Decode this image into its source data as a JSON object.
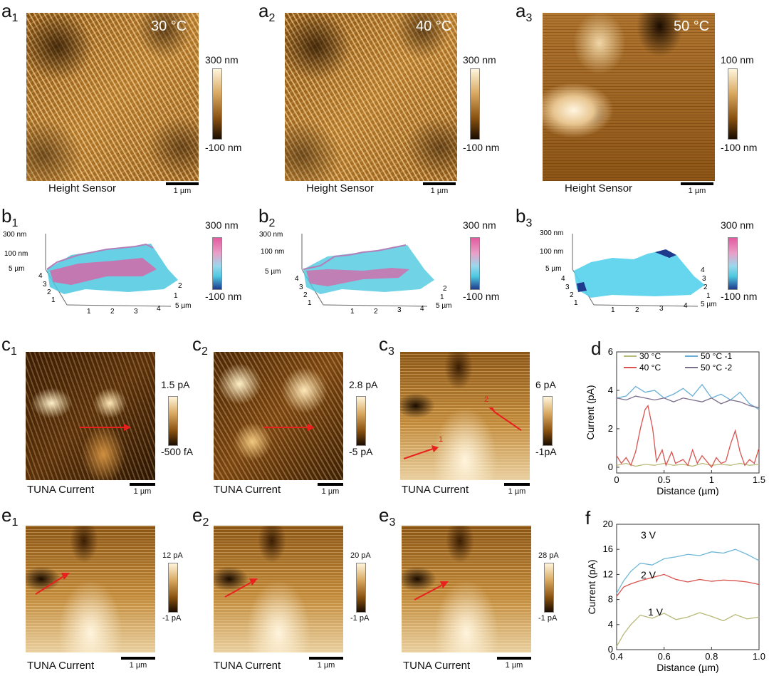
{
  "row_a": [
    {
      "label": "a",
      "sub": "1",
      "temp": "30 °C",
      "cb_top": "300 nm",
      "cb_bot": "-100 nm",
      "caption": "Height Sensor",
      "scale": "1 µm"
    },
    {
      "label": "a",
      "sub": "2",
      "temp": "40 °C",
      "cb_top": "300 nm",
      "cb_bot": "-100 nm",
      "caption": "Height Sensor",
      "scale": "1 µm"
    },
    {
      "label": "a",
      "sub": "3",
      "temp": "50 °C",
      "cb_top": "100 nm",
      "cb_bot": "-100 nm",
      "caption": "Height Sensor",
      "scale": "1 µm"
    }
  ],
  "row_b": [
    {
      "label": "b",
      "sub": "1",
      "cb_top": "300 nm",
      "cb_bot": "-100 nm",
      "z1": "300 nm",
      "z2": "100 nm",
      "z3": "5 µm",
      "yt": [
        "4",
        "3",
        "2",
        "1"
      ],
      "xt": [
        "1",
        "2",
        "3",
        "4",
        "5 µm"
      ],
      "rt": [
        "2",
        "1"
      ]
    },
    {
      "label": "b",
      "sub": "2",
      "cb_top": "300 nm",
      "cb_bot": "-100 nm",
      "z1": "300 nm",
      "z2": "100 nm",
      "z3": "5 µm",
      "yt": [
        "4",
        "3",
        "2",
        "1"
      ],
      "xt": [
        "1",
        "2",
        "3",
        "4",
        "5 µm"
      ],
      "rt": [
        "2",
        "1"
      ]
    },
    {
      "label": "b",
      "sub": "3",
      "cb_top": "300 nm",
      "cb_bot": "-100 nm",
      "z1": "300 nm",
      "z2": "100 nm",
      "z3": "5 µm",
      "yt": [
        "4",
        "3",
        "2",
        "1"
      ],
      "xt": [
        "1",
        "2",
        "3",
        "4",
        "5 µm"
      ],
      "rt": [
        "4",
        "3",
        "2",
        "1"
      ]
    }
  ],
  "row_c": [
    {
      "label": "c",
      "sub": "1",
      "cb_top": "1.5 pA",
      "cb_bot": "-500 fA",
      "caption": "TUNA Current",
      "scale": "1 µm"
    },
    {
      "label": "c",
      "sub": "2",
      "cb_top": "2.8 pA",
      "cb_bot": "-5 pA",
      "caption": "TUNA Current",
      "scale": "1 µm"
    },
    {
      "label": "c",
      "sub": "3",
      "cb_top": "6 pA",
      "cb_bot": "-1pA",
      "caption": "TUNA Current",
      "scale": "1 µm",
      "arrow1": "1",
      "arrow2": "2"
    }
  ],
  "row_e": [
    {
      "label": "e",
      "sub": "1",
      "cb_top": "12 pA",
      "cb_bot": "-1 pA",
      "caption": "TUNA Current",
      "scale": "1 µm"
    },
    {
      "label": "e",
      "sub": "2",
      "cb_top": "20 pA",
      "cb_bot": "-1 pA",
      "caption": "TUNA Current",
      "scale": "1 µm"
    },
    {
      "label": "e",
      "sub": "3",
      "cb_top": "28 pA",
      "cb_bot": "-1 pA",
      "caption": "TUNA Current",
      "scale": "1 µm"
    }
  ],
  "chart_data": [
    {
      "id": "d",
      "label": "d",
      "type": "line",
      "xlabel": "Distance (µm)",
      "ylabel": "Current (pA)",
      "xlim": [
        0,
        1.5
      ],
      "ylim": [
        -0.3,
        6
      ],
      "xticks": [
        "0",
        "0.5",
        "1",
        "1.5"
      ],
      "yticks": [
        "0",
        "2",
        "4",
        "6"
      ],
      "legend_position": "top",
      "series": [
        {
          "name": "30 °C",
          "color": "#b9b97a",
          "x": [
            0,
            0.1,
            0.2,
            0.3,
            0.4,
            0.5,
            0.6,
            0.7,
            0.8,
            0.9,
            1.0,
            1.1,
            1.2,
            1.3,
            1.4,
            1.5
          ],
          "y": [
            0.1,
            0.2,
            0.05,
            0.15,
            0.1,
            0.2,
            0.1,
            0.15,
            0.05,
            0.2,
            0.1,
            0.15,
            0.1,
            0.2,
            0.1,
            0.15
          ]
        },
        {
          "name": "40 °C",
          "color": "#d9534f",
          "x": [
            0,
            0.05,
            0.1,
            0.15,
            0.2,
            0.25,
            0.3,
            0.33,
            0.38,
            0.42,
            0.48,
            0.52,
            0.58,
            0.62,
            0.7,
            0.75,
            0.8,
            0.85,
            0.9,
            0.95,
            1.0,
            1.05,
            1.1,
            1.15,
            1.2,
            1.25,
            1.3,
            1.35,
            1.4,
            1.45,
            1.5
          ],
          "y": [
            0.6,
            0.2,
            0.5,
            0.1,
            0.8,
            2.0,
            3.0,
            3.2,
            2.0,
            0.3,
            0.9,
            0.1,
            0.8,
            0.2,
            0.4,
            0.1,
            0.9,
            0.2,
            0.6,
            0.3,
            0.0,
            0.5,
            0.2,
            0.3,
            1.2,
            1.9,
            0.8,
            0.1,
            0.4,
            0.2,
            1.0
          ]
        },
        {
          "name": "50 °C -1",
          "color": "#6aaed6",
          "x": [
            0,
            0.1,
            0.2,
            0.3,
            0.4,
            0.5,
            0.6,
            0.7,
            0.8,
            0.9,
            1.0,
            1.1,
            1.2,
            1.3,
            1.4,
            1.5
          ],
          "y": [
            3.6,
            3.7,
            4.2,
            3.9,
            4.0,
            3.6,
            3.8,
            4.1,
            3.7,
            4.3,
            3.6,
            3.8,
            3.5,
            3.9,
            3.3,
            3.0
          ]
        },
        {
          "name": "50 °C -2",
          "color": "#7b6f8c",
          "x": [
            0,
            0.1,
            0.2,
            0.3,
            0.4,
            0.5,
            0.6,
            0.7,
            0.8,
            0.9,
            1.0,
            1.1,
            1.2,
            1.3,
            1.4,
            1.5
          ],
          "y": [
            3.6,
            3.5,
            3.7,
            3.6,
            3.5,
            3.6,
            3.4,
            3.6,
            3.5,
            3.4,
            3.6,
            3.3,
            3.5,
            3.4,
            3.2,
            3.1
          ]
        }
      ]
    },
    {
      "id": "f",
      "label": "f",
      "type": "line",
      "xlabel": "Distance (µm)",
      "ylabel": "Current (pA)",
      "xlim": [
        0.4,
        1.0
      ],
      "ylim": [
        0,
        20
      ],
      "xticks": [
        "0.4",
        "0.6",
        "0.8",
        "1.0"
      ],
      "yticks": [
        "0",
        "4",
        "8",
        "12",
        "16",
        "20"
      ],
      "series": [
        {
          "name": "3 V",
          "color": "#6fb8d8",
          "x": [
            0.4,
            0.43,
            0.46,
            0.5,
            0.55,
            0.6,
            0.65,
            0.7,
            0.75,
            0.8,
            0.85,
            0.9,
            0.95,
            1.0
          ],
          "y": [
            9,
            11,
            12.5,
            13.8,
            13.5,
            14.5,
            14.8,
            15.2,
            15.0,
            15.6,
            15.4,
            16.0,
            15.2,
            14.2
          ]
        },
        {
          "name": "2 V",
          "color": "#d9534f",
          "x": [
            0.4,
            0.43,
            0.46,
            0.5,
            0.55,
            0.6,
            0.65,
            0.7,
            0.75,
            0.8,
            0.85,
            0.9,
            0.95,
            1.0
          ],
          "y": [
            8.5,
            10,
            10.5,
            11,
            11.5,
            12,
            11.2,
            10.8,
            11.2,
            10.9,
            11.1,
            11.0,
            10.8,
            10.4
          ]
        },
        {
          "name": "1 V",
          "color": "#b9b97a",
          "x": [
            0.4,
            0.43,
            0.46,
            0.5,
            0.55,
            0.6,
            0.65,
            0.7,
            0.75,
            0.8,
            0.85,
            0.9,
            0.95,
            1.0
          ],
          "y": [
            0.5,
            2.5,
            4.0,
            5.5,
            5.0,
            5.8,
            4.8,
            5.2,
            5.9,
            5.3,
            4.6,
            5.6,
            4.9,
            5.2
          ]
        }
      ]
    }
  ],
  "colors": {
    "afm_dark": "#1a0c00",
    "afm_mid": "#a86a1e",
    "afm_light": "#fff5dc",
    "b_pink": "#e35b9f",
    "b_cyan": "#4ec8e0",
    "b_blue": "#1e3a8c",
    "arrow": "#e8201e"
  }
}
